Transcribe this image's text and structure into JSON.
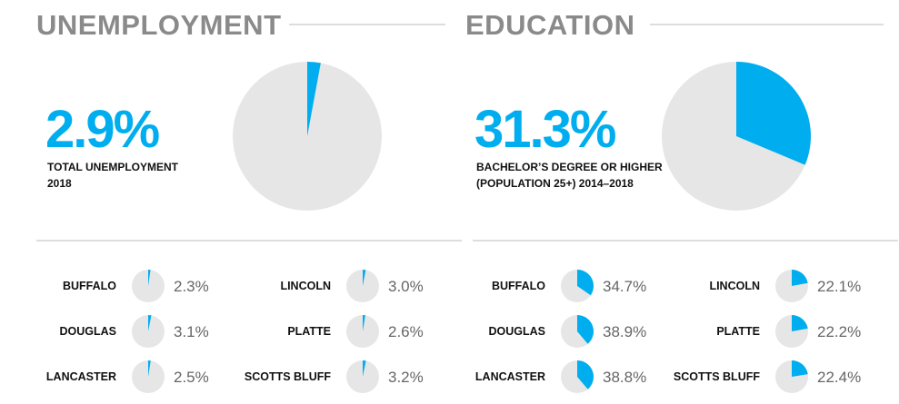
{
  "chart_data": [
    {
      "type": "pie",
      "title": "UNEMPLOYMENT",
      "description": [
        "TOTAL UNEMPLOYMENT",
        "2018"
      ],
      "values": [
        2.9
      ],
      "value_labels": [
        "2.9%"
      ],
      "color": "#00aeef"
    },
    {
      "type": "pie",
      "categories": [
        "BUFFALO",
        "DOUGLAS",
        "LANCASTER",
        "LINCOLN",
        "PLATTE",
        "SCOTTS BLUFF"
      ],
      "values": [
        2.3,
        3.1,
        2.5,
        3.0,
        2.6,
        3.2
      ],
      "value_labels": [
        "2.3%",
        "3.1%",
        "2.5%",
        "3.0%",
        "2.6%",
        "3.2%"
      ],
      "color": "#00aeef"
    },
    {
      "type": "pie",
      "title": "EDUCATION",
      "description": [
        "BACHELOR’S DEGREE OR HIGHER",
        "(POPULATION 25+) 2014–2018"
      ],
      "values": [
        31.3
      ],
      "value_labels": [
        "31.3%"
      ],
      "color": "#00aeef"
    },
    {
      "type": "pie",
      "categories": [
        "BUFFALO",
        "DOUGLAS",
        "LANCASTER",
        "LINCOLN",
        "PLATTE",
        "SCOTTS BLUFF"
      ],
      "values": [
        34.7,
        38.9,
        38.8,
        22.1,
        22.2,
        22.4
      ],
      "value_labels": [
        "34.7%",
        "38.9%",
        "38.8%",
        "22.1%",
        "22.2%",
        "22.4%"
      ],
      "color": "#00aeef"
    }
  ]
}
